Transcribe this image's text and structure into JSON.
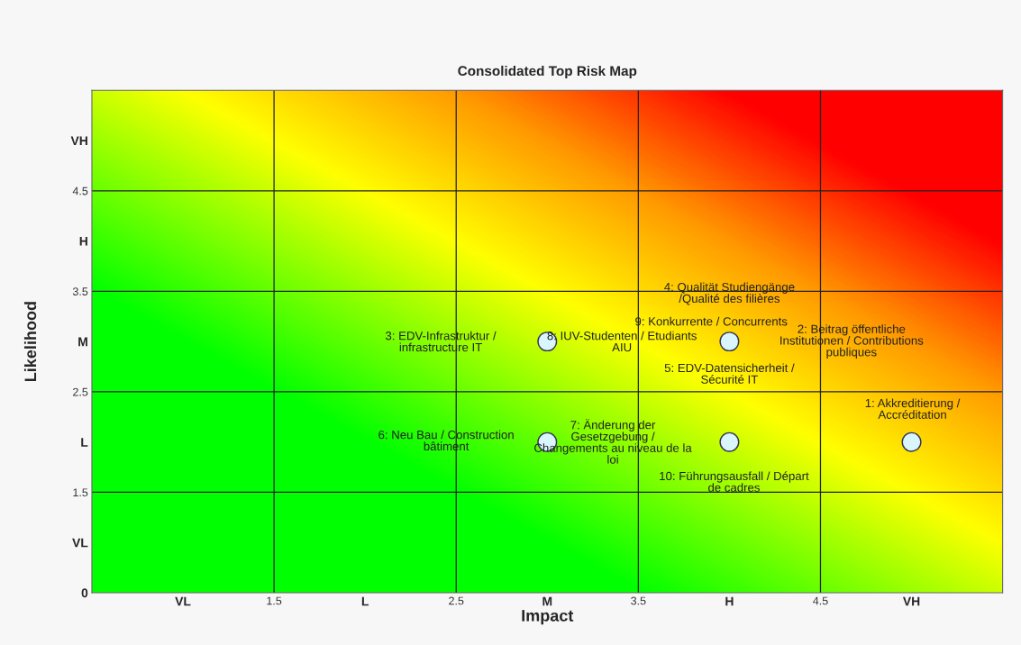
{
  "chart_data": {
    "type": "scatter",
    "title": "Consolidated Top Risk Map",
    "xlabel": "Impact",
    "ylabel": "Likelihood",
    "xlim": [
      0.5,
      5.5
    ],
    "ylim": [
      0.5,
      5.5
    ],
    "xticks": [
      {
        "value": 1,
        "label": "VL"
      },
      1.5,
      {
        "value": 2,
        "label": "L"
      },
      2.5,
      {
        "value": 3,
        "label": "M"
      },
      3.5,
      {
        "value": 4,
        "label": "H"
      },
      4.5,
      {
        "value": 5,
        "label": "VH"
      }
    ],
    "yticks": [
      {
        "value": 0.5,
        "label": "0"
      },
      {
        "value": 1,
        "label": "VL"
      },
      1.5,
      {
        "value": 2,
        "label": "L"
      },
      2.5,
      {
        "value": 3,
        "label": "M"
      },
      3.5,
      {
        "value": 4,
        "label": "H"
      },
      4.5,
      {
        "value": 5,
        "label": "VH"
      }
    ],
    "grid": true,
    "marker": "circle",
    "series": [
      {
        "color": "#d9f6ff",
        "x": [
          3,
          4,
          3,
          4,
          5
        ],
        "values": [
          3,
          3,
          2,
          2,
          2
        ]
      }
    ],
    "annotations": [
      "3: EDV-Infrastruktur /\ninfrastructure IT",
      "8: IUV-Studenten / Etudiants\nAIU",
      "4: Qualität Studiengänge\n/Qualité des filières",
      "9: Konkurrente / Concurrents",
      "2: Beitrag öffentliche\nInstitutionen / Contributions\npubliques",
      "5: EDV-Datensicherheit /\nSécurité IT",
      "6: Neu Bau / Construction\nbâtiment",
      "7: Änderung der\nGesetzgebung /\nChangements au niveau de la\nloi",
      "10: Führungsausfall / Départ\nde cadres",
      "1: Akkreditierung /\nAccréditation"
    ]
  }
}
